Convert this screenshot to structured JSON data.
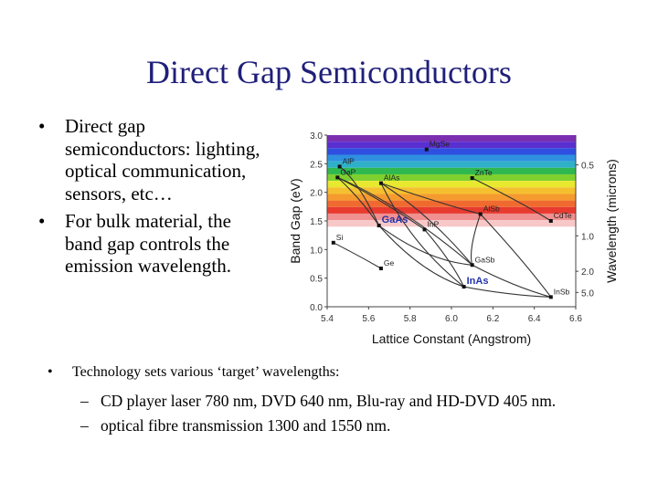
{
  "slide": {
    "title": "Direct Gap Semiconductors",
    "bullets": [
      {
        "marker": "•",
        "text": "Direct gap semiconductors: lighting, optical communication, sensors, etc…"
      },
      {
        "marker": "•",
        "text": "For bulk material, the band gap controls the emission wavelength."
      }
    ],
    "technology": {
      "marker": "•",
      "text": "Technology sets various ‘target’ wavelengths:",
      "subitems": [
        {
          "marker": "–",
          "text": "CD player laser 780 nm, DVD 640 nm, Blu-ray and HD-DVD 405 nm."
        },
        {
          "marker": "–",
          "text": "optical fibre transmission 1300 and 1550 nm."
        }
      ]
    }
  },
  "chart_data": {
    "type": "scatter",
    "xlabel": "Lattice Constant (Angstrom)",
    "ylabel": "Band Gap (eV)",
    "y2label": "Wavelength (microns)",
    "xlim": [
      5.4,
      6.6
    ],
    "ylim": [
      0.0,
      3.0
    ],
    "xticks": [
      "5.4",
      "5.6",
      "5.8",
      "6.0",
      "6.2",
      "6.4",
      "6.6"
    ],
    "yticks": [
      "0.0",
      "0.5",
      "1.0",
      "1.5",
      "2.0",
      "2.5",
      "3.0"
    ],
    "y2ticks": [
      {
        "label": "0.5",
        "eV": 2.48
      },
      {
        "label": "1.0",
        "eV": 1.24
      },
      {
        "label": "2.0",
        "eV": 0.62
      },
      {
        "label": "5.0",
        "eV": 0.25
      }
    ],
    "bands": [
      "#7a2fb0",
      "#5a2fd0",
      "#2f4fe0",
      "#2f8fe0",
      "#2fb0c8",
      "#2fb84f",
      "#7fd02f",
      "#e8e82f",
      "#f5c02f",
      "#f59a2f",
      "#f06a2f",
      "#e83a2f",
      "#f09090",
      "#f8c8c8"
    ],
    "band_range": [
      1.4,
      3.0
    ],
    "points": [
      {
        "name": "MgSe",
        "x": 5.88,
        "y": 2.75,
        "color": "#222222"
      },
      {
        "name": "AlP",
        "x": 5.46,
        "y": 2.45,
        "color": "#222222"
      },
      {
        "name": "GaP",
        "x": 5.45,
        "y": 2.26,
        "color": "#222222"
      },
      {
        "name": "AlAs",
        "x": 5.66,
        "y": 2.16,
        "color": "#222222"
      },
      {
        "name": "ZnTe",
        "x": 6.1,
        "y": 2.25,
        "color": "#222222"
      },
      {
        "name": "AlSb",
        "x": 6.14,
        "y": 1.62,
        "color": "#222222"
      },
      {
        "name": "CdTe",
        "x": 6.48,
        "y": 1.5,
        "color": "#222222"
      },
      {
        "name": "GaAs",
        "x": 5.65,
        "y": 1.42,
        "color": "#2233aa"
      },
      {
        "name": "InP",
        "x": 5.87,
        "y": 1.35,
        "color": "#222222"
      },
      {
        "name": "Si",
        "x": 5.43,
        "y": 1.12,
        "color": "#222222"
      },
      {
        "name": "GaSb",
        "x": 6.1,
        "y": 0.73,
        "color": "#222222"
      },
      {
        "name": "Ge",
        "x": 5.66,
        "y": 0.67,
        "color": "#222222"
      },
      {
        "name": "InAs",
        "x": 6.06,
        "y": 0.35,
        "color": "#2233aa"
      },
      {
        "name": "InSb",
        "x": 6.48,
        "y": 0.17,
        "color": "#222222"
      }
    ],
    "curves": [
      [
        [
          5.46,
          2.45
        ],
        [
          5.55,
          2.2
        ],
        [
          5.65,
          1.42
        ]
      ],
      [
        [
          5.45,
          2.26
        ],
        [
          5.56,
          1.9
        ],
        [
          5.65,
          1.42
        ]
      ],
      [
        [
          5.45,
          2.26
        ],
        [
          5.65,
          1.9
        ],
        [
          5.87,
          1.35
        ]
      ],
      [
        [
          5.66,
          2.16
        ],
        [
          5.8,
          1.1
        ],
        [
          6.06,
          0.35
        ]
      ],
      [
        [
          5.66,
          2.16
        ],
        [
          5.95,
          1.8
        ],
        [
          6.14,
          1.62
        ]
      ],
      [
        [
          5.45,
          2.26
        ],
        [
          5.75,
          1.8
        ],
        [
          6.1,
          0.73
        ]
      ],
      [
        [
          5.66,
          2.16
        ],
        [
          5.9,
          1.6
        ],
        [
          6.1,
          0.73
        ]
      ],
      [
        [
          5.65,
          1.42
        ],
        [
          5.88,
          0.8
        ],
        [
          6.1,
          0.73
        ]
      ],
      [
        [
          5.87,
          1.35
        ],
        [
          6.0,
          0.8
        ],
        [
          6.06,
          0.35
        ]
      ],
      [
        [
          5.65,
          1.42
        ],
        [
          5.85,
          0.6
        ],
        [
          6.06,
          0.35
        ]
      ],
      [
        [
          6.14,
          1.62
        ],
        [
          6.08,
          1.0
        ],
        [
          6.1,
          0.73
        ]
      ],
      [
        [
          6.14,
          1.62
        ],
        [
          6.35,
          0.8
        ],
        [
          6.48,
          0.17
        ]
      ],
      [
        [
          6.1,
          0.73
        ],
        [
          6.3,
          0.35
        ],
        [
          6.48,
          0.17
        ]
      ],
      [
        [
          6.06,
          0.35
        ],
        [
          6.28,
          0.2
        ],
        [
          6.48,
          0.17
        ]
      ],
      [
        [
          6.1,
          2.25
        ],
        [
          6.35,
          1.8
        ],
        [
          6.48,
          1.5
        ]
      ],
      [
        [
          5.43,
          1.12
        ],
        [
          5.55,
          0.9
        ],
        [
          5.66,
          0.67
        ]
      ]
    ]
  }
}
